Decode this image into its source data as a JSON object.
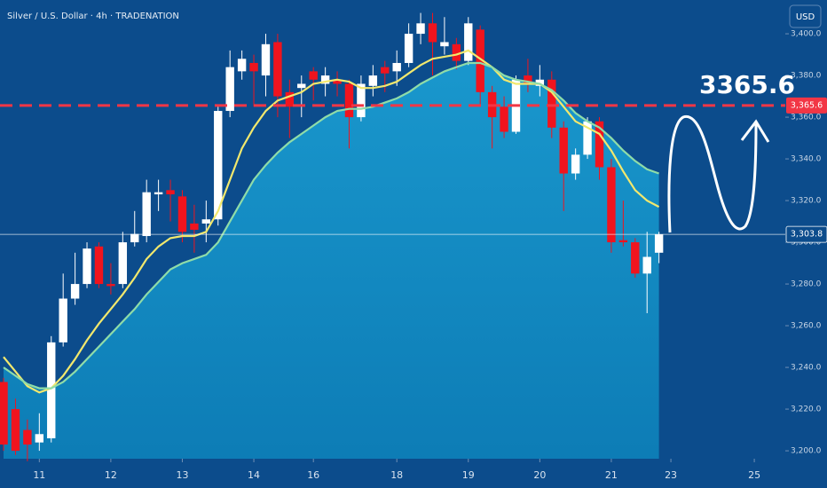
{
  "chart_data": {
    "type": "candlestick",
    "title": "Silver / U.S. Dollar · 4h · TRADENATION",
    "currency": "USD",
    "annotation": "3365.6",
    "bull_color": "#ffffff",
    "bear_color": "#f0141e",
    "open": [
      3233,
      3220,
      3210,
      3204,
      3206,
      3252,
      3273,
      3280,
      3298,
      3280,
      3280,
      3300,
      3303,
      3323,
      3325,
      3322,
      3309,
      3309,
      3311,
      3363,
      3382,
      3386,
      3380,
      3396,
      3372,
      3374,
      3382,
      3376,
      3378,
      3376,
      3360,
      3375,
      3384,
      3382,
      3386,
      3400,
      3405,
      3394,
      3395,
      3387,
      3402,
      3372,
      3365,
      3353,
      3380,
      3375,
      3378,
      3355,
      3333,
      3342,
      3358,
      3336,
      3301,
      3300,
      3285,
      3295
    ],
    "high": [
      3235,
      3225,
      3215,
      3218,
      3255,
      3285,
      3295,
      3300,
      3300,
      3290,
      3305,
      3315,
      3330,
      3330,
      3330,
      3325,
      3318,
      3320,
      3365,
      3392,
      3392,
      3390,
      3400,
      3400,
      3378,
      3380,
      3384,
      3384,
      3382,
      3378,
      3380,
      3385,
      3387,
      3392,
      3405,
      3410,
      3410,
      3408,
      3398,
      3408,
      3404,
      3375,
      3370,
      3380,
      3388,
      3385,
      3382,
      3358,
      3345,
      3360,
      3360,
      3340,
      3320,
      3302,
      3305,
      3305
    ],
    "low": [
      3200,
      3198,
      3195,
      3200,
      3204,
      3250,
      3270,
      3278,
      3278,
      3275,
      3278,
      3298,
      3300,
      3315,
      3310,
      3300,
      3295,
      3300,
      3308,
      3360,
      3378,
      3365,
      3370,
      3360,
      3350,
      3360,
      3368,
      3370,
      3370,
      3345,
      3358,
      3370,
      3372,
      3375,
      3384,
      3395,
      3380,
      3390,
      3383,
      3385,
      3365,
      3345,
      3350,
      3352,
      3372,
      3370,
      3350,
      3315,
      3330,
      3340,
      3330,
      3295,
      3298,
      3283,
      3266,
      3290
    ],
    "close": [
      3203,
      3200,
      3203,
      3208,
      3252,
      3273,
      3280,
      3297,
      3280,
      3279,
      3300,
      3304,
      3324,
      3324,
      3323,
      3305,
      3306,
      3311,
      3363,
      3384,
      3388,
      3382,
      3395,
      3370,
      3365,
      3376,
      3378,
      3380,
      3376,
      3360,
      3376,
      3380,
      3381,
      3386,
      3400,
      3405,
      3396,
      3396,
      3387,
      3405,
      3372,
      3360,
      3353,
      3378,
      3376,
      3378,
      3355,
      3333,
      3342,
      3358,
      3336,
      3300,
      3300,
      3285,
      3293,
      3303.8
    ],
    "lines": [
      {
        "color": "#f2e86d",
        "values": [
          3245,
          3238,
          3231,
          3228,
          3230,
          3236,
          3244,
          3253,
          3261,
          3268,
          3275,
          3283,
          3292,
          3298,
          3302,
          3303,
          3303,
          3305,
          3315,
          3330,
          3345,
          3355,
          3363,
          3368,
          3370,
          3372,
          3376,
          3377,
          3378,
          3377,
          3374,
          3374,
          3375,
          3377,
          3381,
          3385,
          3388,
          3389,
          3390,
          3392,
          3388,
          3384,
          3378,
          3376,
          3376,
          3376,
          3372,
          3365,
          3358,
          3355,
          3352,
          3344,
          3334,
          3325,
          3320,
          3317
        ]
      },
      {
        "color": "#8fdca8",
        "fill": "#138fc4",
        "values": [
          3240,
          3236,
          3232,
          3230,
          3230,
          3233,
          3238,
          3244,
          3250,
          3256,
          3262,
          3268,
          3275,
          3281,
          3287,
          3290,
          3292,
          3294,
          3300,
          3310,
          3320,
          3330,
          3337,
          3343,
          3348,
          3352,
          3356,
          3360,
          3363,
          3364,
          3364,
          3365,
          3367,
          3369,
          3372,
          3376,
          3379,
          3382,
          3384,
          3386,
          3386,
          3384,
          3380,
          3378,
          3377,
          3376,
          3373,
          3368,
          3362,
          3358,
          3355,
          3350,
          3344,
          3339,
          3335,
          3333
        ]
      }
    ],
    "price_lines": [
      {
        "value": 3365.6,
        "label": "3,365.6",
        "color": "#f23645",
        "dashed": true
      },
      {
        "value": 3303.8,
        "label": "3,303.8",
        "color": "#ffffff",
        "dashed": false
      }
    ],
    "xlim": [
      -0.3,
      65.6
    ],
    "xticks": [
      {
        "value": 3,
        "label": "11"
      },
      {
        "value": 9,
        "label": "12"
      },
      {
        "value": 15,
        "label": "13"
      },
      {
        "value": 21,
        "label": "14"
      },
      {
        "value": 26,
        "label": "16"
      },
      {
        "value": 33,
        "label": "18"
      },
      {
        "value": 39,
        "label": "19"
      },
      {
        "value": 45,
        "label": "20"
      },
      {
        "value": 51,
        "label": "21"
      },
      {
        "value": 56,
        "label": "23"
      },
      {
        "value": 63,
        "label": "25"
      }
    ],
    "ylim": [
      3196.2,
      3416.2
    ],
    "yticks": [
      {
        "value": 3200,
        "label": "3,200.0"
      },
      {
        "value": 3220,
        "label": "3,220.0"
      },
      {
        "value": 3240,
        "label": "3,240.0"
      },
      {
        "value": 3260,
        "label": "3,260.0"
      },
      {
        "value": 3280,
        "label": "3,280.0"
      },
      {
        "value": 3300,
        "label": "3,300.0"
      },
      {
        "value": 3320,
        "label": "3,320.0"
      },
      {
        "value": 3340,
        "label": "3,340.0"
      },
      {
        "value": 3360,
        "label": "3,360.0"
      },
      {
        "value": 3380,
        "label": "3,380.0"
      },
      {
        "value": 3400,
        "label": "3,400.0"
      }
    ]
  }
}
